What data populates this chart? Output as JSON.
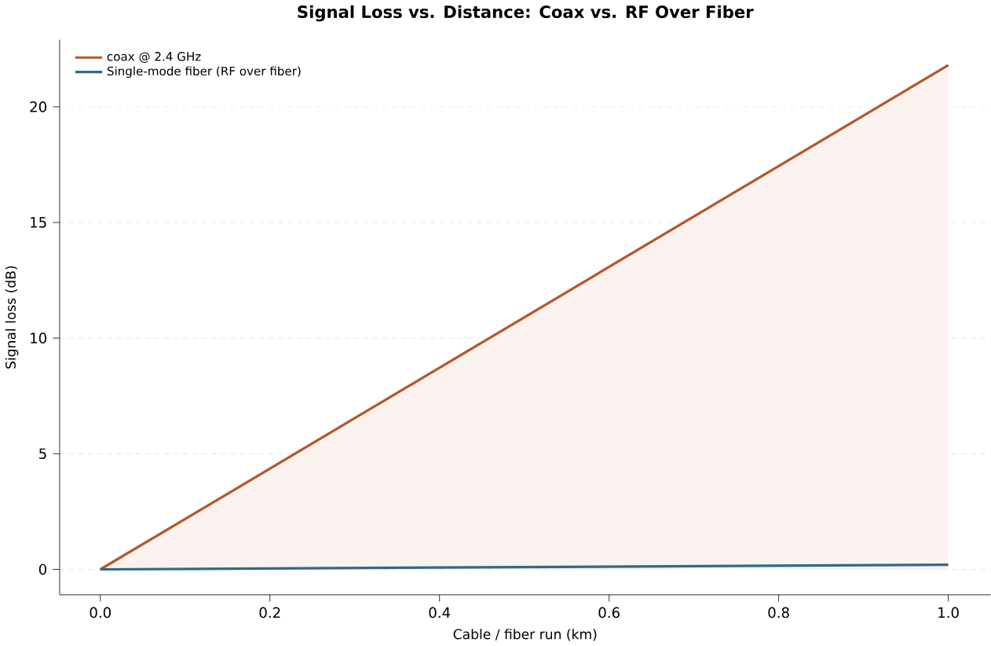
{
  "chart_data": {
    "type": "line",
    "title": "Signal Loss vs. Distance: Coax vs. RF Over Fiber",
    "xlabel": "Cable / fiber run (km)",
    "ylabel": "Signal loss (dB)",
    "x": [
      0,
      1.0
    ],
    "series": [
      {
        "name": "coax @ 2.4 GHz",
        "color": "#b4582a",
        "type": "area",
        "values": [
          0,
          21.8
        ]
      },
      {
        "name": "Single-mode fiber (RF over fiber)",
        "color": "#2f6a8a",
        "values": [
          0,
          0.2
        ]
      }
    ],
    "xlim": [
      -0.048,
      1.05
    ],
    "ylim": [
      -1.1,
      22.9
    ],
    "xticks": [
      {
        "value": 0,
        "label": "0.0"
      },
      0.2,
      0.4,
      0.6,
      0.8,
      {
        "value": 1,
        "label": "1.0"
      }
    ],
    "yticks": [
      0,
      5,
      10,
      15,
      20
    ],
    "grid": "y",
    "legend": "top left"
  }
}
